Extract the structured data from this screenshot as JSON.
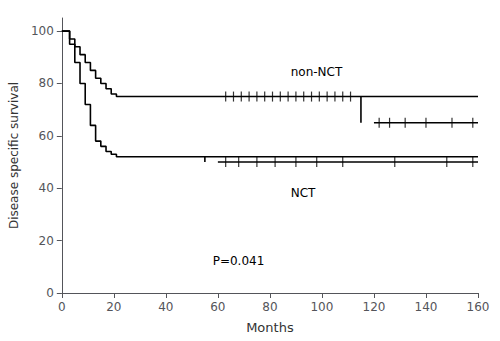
{
  "chart_data": {
    "type": "line",
    "xlabel": "Months",
    "ylabel": "Disease specific survival",
    "xlim": [
      0,
      160
    ],
    "ylim": [
      0,
      105
    ],
    "xticks": [
      0,
      20,
      40,
      60,
      80,
      100,
      120,
      140,
      160
    ],
    "yticks": [
      0,
      20,
      40,
      60,
      80,
      100
    ],
    "grid": false,
    "color": "#000000",
    "series": [
      {
        "type": "step",
        "x": [
          0,
          3,
          5,
          7,
          9,
          11,
          13,
          15,
          17,
          19,
          21,
          23,
          25,
          27,
          29,
          160
        ],
        "values": [
          100,
          97,
          94,
          91,
          88,
          85,
          82,
          80,
          78,
          76,
          75,
          75,
          75,
          75,
          75,
          75
        ]
      },
      {
        "type": "line",
        "x": [
          115,
          115
        ],
        "values": [
          75,
          65
        ]
      },
      {
        "type": "line",
        "x": [
          120,
          160
        ],
        "values": [
          65,
          65
        ]
      },
      {
        "type": "step",
        "x": [
          0,
          3,
          5,
          7,
          9,
          11,
          13,
          15,
          17,
          19,
          21,
          25,
          160
        ],
        "values": [
          100,
          95,
          88,
          80,
          72,
          64,
          58,
          56,
          54,
          53,
          52,
          52,
          52
        ]
      },
      {
        "type": "line",
        "x": [
          55,
          55
        ],
        "values": [
          52,
          50
        ]
      },
      {
        "type": "line",
        "x": [
          60,
          160
        ],
        "values": [
          50,
          50
        ]
      },
      {
        "type": "scatter",
        "marker": "|",
        "x": [
          63,
          66,
          69,
          72,
          75,
          78,
          81,
          84,
          87,
          90,
          93,
          96,
          99,
          102,
          105,
          108,
          111,
          122,
          126,
          132,
          140,
          150,
          158
        ],
        "values": [
          75,
          75,
          75,
          75,
          75,
          75,
          75,
          75,
          75,
          75,
          75,
          75,
          75,
          75,
          75,
          75,
          75,
          65,
          65,
          65,
          65,
          65,
          65
        ]
      },
      {
        "type": "scatter",
        "marker": "|",
        "x": [
          63,
          68,
          75,
          82,
          90,
          98,
          108,
          128,
          148,
          158
        ],
        "values": [
          50,
          50,
          50,
          50,
          50,
          50,
          50,
          50,
          50,
          50
        ]
      }
    ],
    "annotations": [
      {
        "text": "P=0.041",
        "x": 58,
        "y": 10
      },
      {
        "text": "non-NCT",
        "x": 88,
        "y": 82
      },
      {
        "text": "NCT",
        "x": 88,
        "y": 36
      }
    ]
  }
}
